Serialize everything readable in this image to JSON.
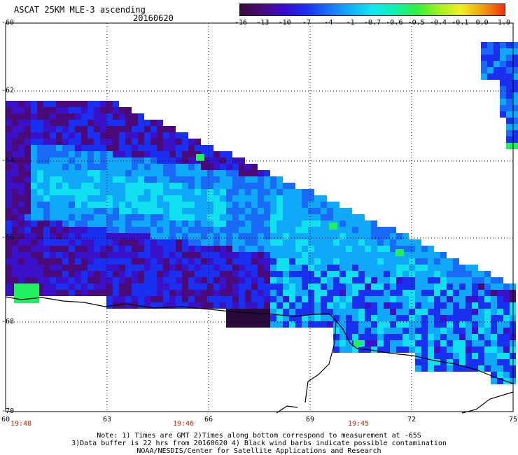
{
  "header": {
    "title": "ASCAT 25KM MLE-3 ascending",
    "date": "20160620"
  },
  "colorbar": {
    "ticks": [
      "-16",
      "-13",
      "-10",
      "-7",
      "-4",
      "-1",
      "-0.7",
      "-0.6",
      "-0.5",
      "-0.4",
      "-0.1",
      "0.0",
      "1.0"
    ],
    "colors": [
      "#3a0a3a",
      "#4b0a78",
      "#3a0ad0",
      "#1a30f0",
      "#1a70f8",
      "#10b0f8",
      "#10e8f0",
      "#10f0b0",
      "#30f040",
      "#a0f020",
      "#f0f020",
      "#f0a010",
      "#f03010"
    ]
  },
  "axes": {
    "lat_labels": [
      "-60",
      "-62",
      "-64",
      "-66",
      "-68",
      "-70"
    ],
    "lon_labels": [
      "60",
      "63",
      "66",
      "69",
      "72",
      "75"
    ],
    "time_labels": [
      "19:48",
      "19:46",
      "19:45"
    ]
  },
  "notes": {
    "line1": "Note: 1) Times are GMT 2)Times along bottom correspond to measurement at -65S",
    "line2": "3)Data buffer is 22 hrs from 20160620 4) Black wind barbs indicate possible contamination",
    "line3": "NOAA/NESDIS/Center for Satellite Applications and Research"
  },
  "palette": {
    "dark_purple": "#2a0a3a",
    "purple": "#4a0a7a",
    "indigo": "#3a10c8",
    "blue": "#1a30f0",
    "mid_blue": "#1a6af8",
    "light_blue": "#10a8f8",
    "cyan": "#10e0f0",
    "green": "#20f060"
  }
}
